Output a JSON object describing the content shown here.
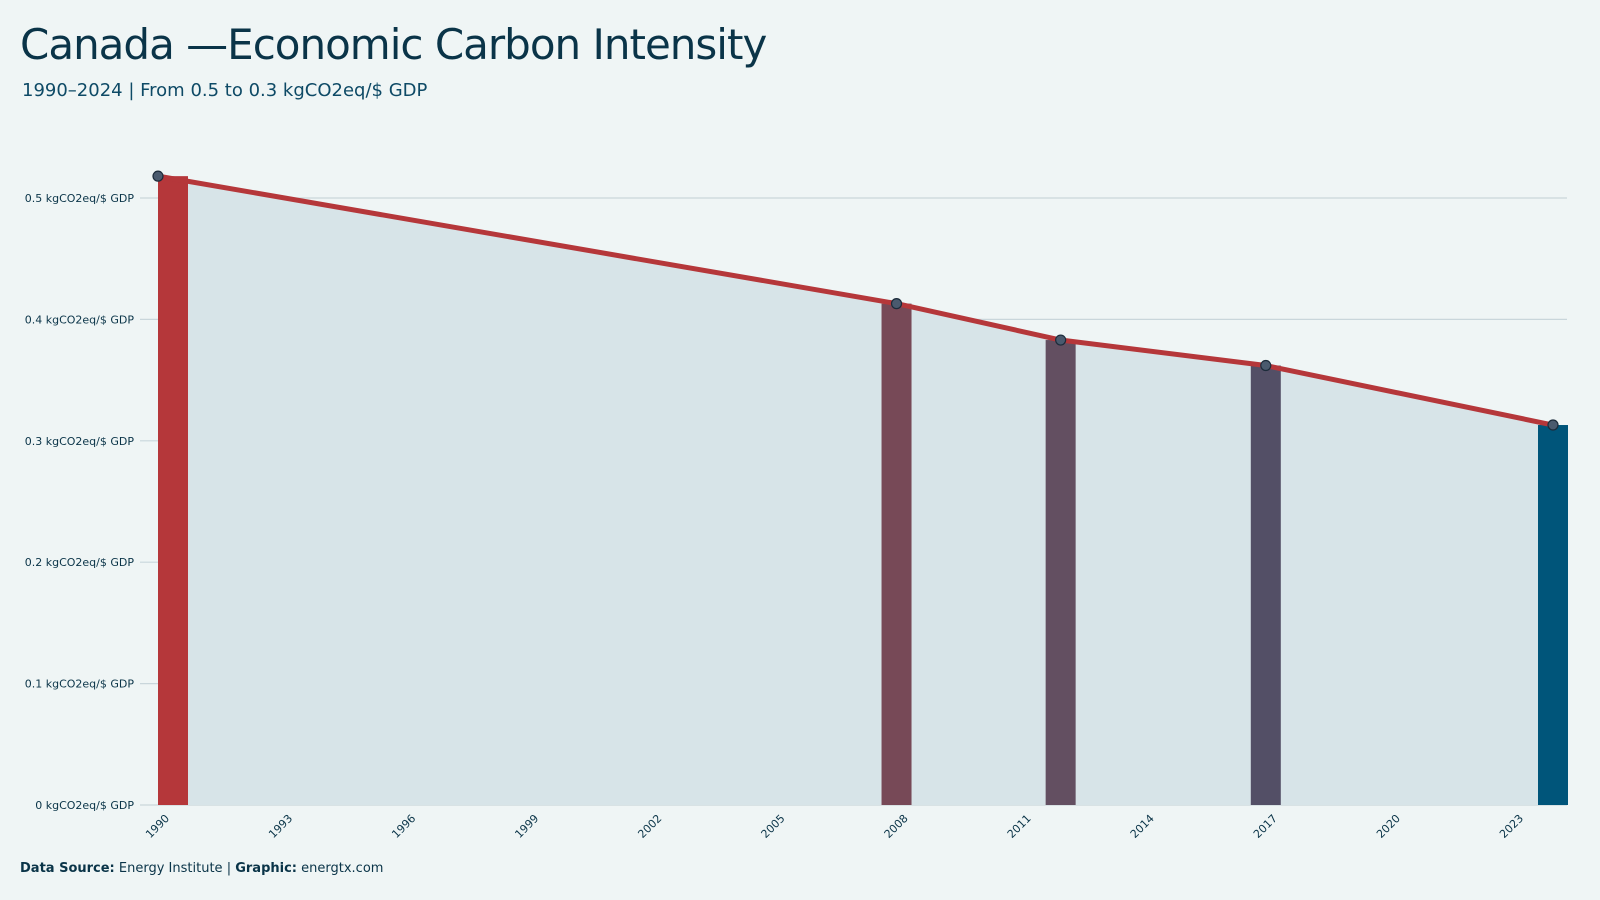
{
  "title": "Canada —Economic Carbon Intensity",
  "subtitle": "1990–2024 | From 0.5 to 0.3 kgCO2eq/$ GDP",
  "footer": {
    "source_label": "Data Source:",
    "source_value": "Energy Institute",
    "separator": "|",
    "graphic_label": "Graphic:",
    "graphic_value": "energtx.com"
  },
  "colors": {
    "background": "#eff5f5",
    "area_fill": "#d7e4e8",
    "line": "#b5373a",
    "grid": "#c9d6db",
    "text": "#0a3448",
    "bar_1990": "#b5373a",
    "bar_2008": "#774957",
    "bar_2012": "#634f61",
    "bar_2017": "#534f66",
    "bar_2024": "#00557a"
  },
  "chart_data": {
    "type": "area",
    "title": "Canada —Economic Carbon Intensity",
    "subtitle": "1990–2024 | From 0.5 to 0.3 kgCO2eq/$ GDP",
    "xlabel": "",
    "ylabel": "",
    "xlim": [
      1990,
      2024
    ],
    "ylim": [
      0,
      0.55
    ],
    "grid": true,
    "legend": "none",
    "x_ticks": [
      1990,
      1993,
      1996,
      1999,
      2002,
      2005,
      2008,
      2011,
      2014,
      2017,
      2020,
      2023
    ],
    "y_ticks": [
      0,
      0.1,
      0.2,
      0.3,
      0.4,
      0.5
    ],
    "y_tick_labels": [
      "0 kgCO2eq/$ GDP",
      "0.1 kgCO2eq/$ GDP",
      "0.2 kgCO2eq/$ GDP",
      "0.3 kgCO2eq/$ GDP",
      "0.4 kgCO2eq/$ GDP",
      "0.5 kgCO2eq/$ GDP"
    ],
    "series": [
      {
        "x": [
          1990,
          2008,
          2012,
          2017,
          2024
        ],
        "values": [
          0.518,
          0.413,
          0.383,
          0.362,
          0.313
        ]
      }
    ],
    "highlight_bars": [
      {
        "x": 1990,
        "value": 0.518,
        "color": "#b5373a"
      },
      {
        "x": 2008,
        "value": 0.413,
        "color": "#774957"
      },
      {
        "x": 2012,
        "value": 0.383,
        "color": "#634f61"
      },
      {
        "x": 2017,
        "value": 0.362,
        "color": "#534f66"
      },
      {
        "x": 2024,
        "value": 0.313,
        "color": "#00557a"
      }
    ]
  }
}
